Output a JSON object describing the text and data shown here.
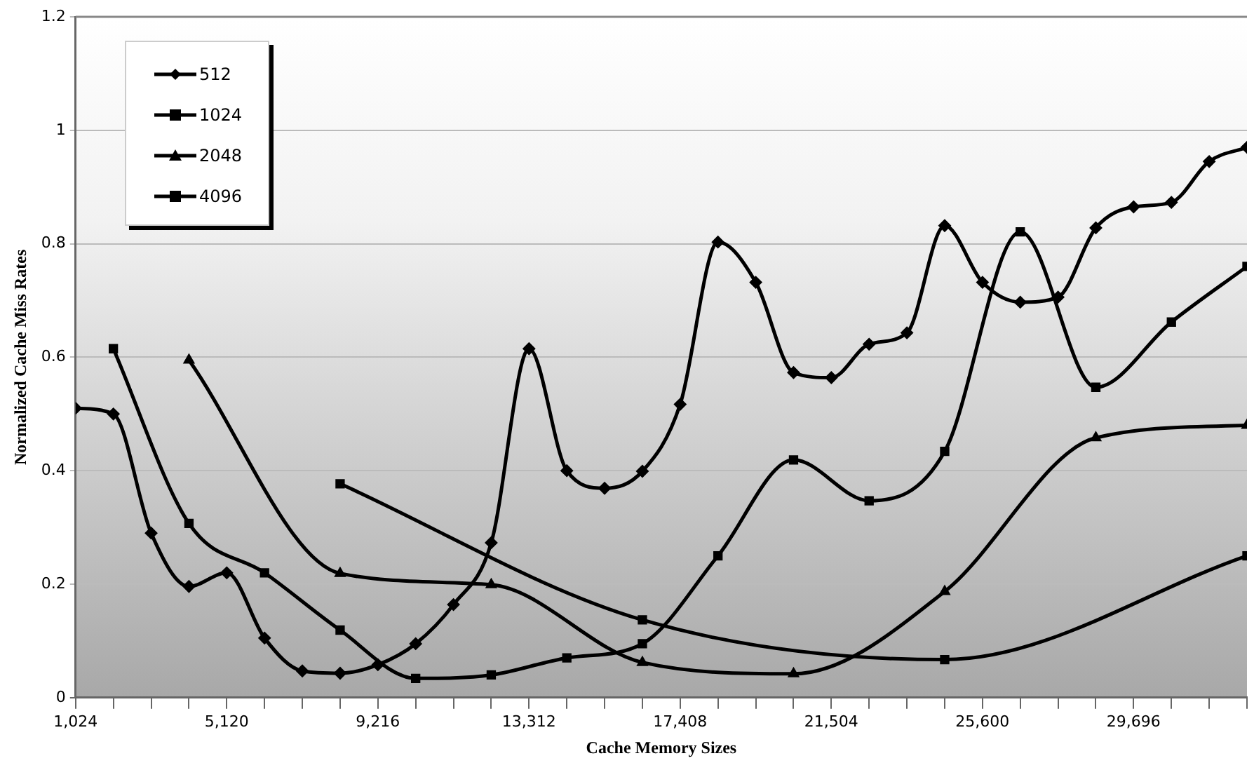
{
  "chart_data": {
    "type": "line",
    "xlabel": "Cache Memory Sizes",
    "ylabel": "Normalized Cache Miss Rates",
    "xlim": [
      1024,
      32768
    ],
    "xticks": [
      {
        "value": 1024,
        "label": "1,024"
      },
      {
        "value": 2048,
        "label": null
      },
      {
        "value": 3072,
        "label": null
      },
      {
        "value": 4096,
        "label": null
      },
      {
        "value": 5120,
        "label": "5,120"
      },
      {
        "value": 6144,
        "label": null
      },
      {
        "value": 7168,
        "label": null
      },
      {
        "value": 8192,
        "label": null
      },
      {
        "value": 9216,
        "label": "9,216"
      },
      {
        "value": 10240,
        "label": null
      },
      {
        "value": 11264,
        "label": null
      },
      {
        "value": 12288,
        "label": null
      },
      {
        "value": 13312,
        "label": "13,312"
      },
      {
        "value": 14336,
        "label": null
      },
      {
        "value": 15360,
        "label": null
      },
      {
        "value": 16384,
        "label": null
      },
      {
        "value": 17408,
        "label": "17,408"
      },
      {
        "value": 18432,
        "label": null
      },
      {
        "value": 19456,
        "label": null
      },
      {
        "value": 20480,
        "label": null
      },
      {
        "value": 21504,
        "label": "21,504"
      },
      {
        "value": 22528,
        "label": null
      },
      {
        "value": 23552,
        "label": null
      },
      {
        "value": 24576,
        "label": null
      },
      {
        "value": 25600,
        "label": "25,600"
      },
      {
        "value": 26624,
        "label": null
      },
      {
        "value": 27648,
        "label": null
      },
      {
        "value": 28672,
        "label": null
      },
      {
        "value": 29696,
        "label": "29,696"
      },
      {
        "value": 30720,
        "label": null
      },
      {
        "value": 31744,
        "label": null
      },
      {
        "value": 32768,
        "label": null
      }
    ],
    "ylim": [
      0,
      1.2
    ],
    "yticks": [
      0,
      0.2,
      0.4,
      0.6,
      0.8,
      1,
      1.2
    ],
    "grid": "y",
    "legend": "top left",
    "line_style": "solid",
    "series": [
      {
        "name": "512",
        "color": "#000000",
        "marker": "diamond",
        "x": [
          1024,
          2048,
          3072,
          4096,
          5120,
          6144,
          7168,
          8192,
          9216,
          10240,
          11264,
          12288,
          13312,
          14336,
          15360,
          16384,
          17408,
          18432,
          19456,
          20480,
          21504,
          22528,
          23552,
          24576,
          25600,
          26624,
          27648,
          28672,
          29696,
          30720,
          31744,
          32768
        ],
        "values": [
          0.51,
          0.5,
          0.29,
          0.196,
          0.22,
          0.105,
          0.047,
          0.043,
          0.058,
          0.095,
          0.164,
          0.273,
          0.615,
          0.4,
          0.369,
          0.399,
          0.517,
          0.803,
          0.732,
          0.573,
          0.564,
          0.623,
          0.643,
          0.832,
          0.732,
          0.697,
          0.706,
          0.828,
          0.865,
          0.873,
          0.945,
          0.97
        ]
      },
      {
        "name": "1024",
        "color": "#000000",
        "marker": "square",
        "x": [
          2048,
          4096,
          6144,
          8192,
          10240,
          12288,
          14336,
          16384,
          18432,
          20480,
          22528,
          24576,
          26624,
          28672,
          30720,
          32768
        ],
        "values": [
          0.615,
          0.307,
          0.22,
          0.119,
          0.034,
          0.04,
          0.07,
          0.095,
          0.25,
          0.419,
          0.347,
          0.434,
          0.821,
          0.547,
          0.662,
          0.76
        ]
      },
      {
        "name": "2048",
        "color": "#000000",
        "marker": "triangle",
        "x": [
          4096,
          8192,
          12288,
          16384,
          20480,
          24576,
          28672,
          32768
        ],
        "values": [
          0.595,
          0.219,
          0.199,
          0.062,
          0.042,
          0.187,
          0.458,
          0.48
        ]
      },
      {
        "name": "4096",
        "color": "#000000",
        "marker": "square",
        "x": [
          8192,
          16384,
          24576,
          32768
        ],
        "values": [
          0.377,
          0.137,
          0.067,
          0.25
        ]
      }
    ]
  }
}
